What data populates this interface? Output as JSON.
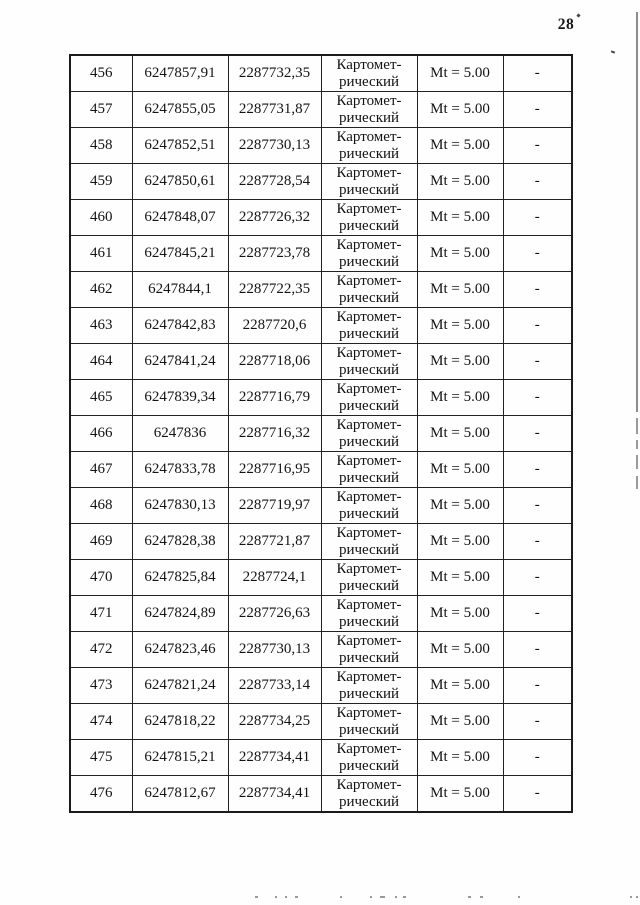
{
  "page": {
    "number": "28"
  },
  "table": {
    "method_line1": "Картомет-",
    "method_line2": "рический",
    "accuracy": "Mt = 5.00",
    "note": "-",
    "rows": [
      {
        "n": "456",
        "x": "6247857,91",
        "y": "2287732,35"
      },
      {
        "n": "457",
        "x": "6247855,05",
        "y": "2287731,87"
      },
      {
        "n": "458",
        "x": "6247852,51",
        "y": "2287730,13"
      },
      {
        "n": "459",
        "x": "6247850,61",
        "y": "2287728,54"
      },
      {
        "n": "460",
        "x": "6247848,07",
        "y": "2287726,32"
      },
      {
        "n": "461",
        "x": "6247845,21",
        "y": "2287723,78"
      },
      {
        "n": "462",
        "x": "6247844,1",
        "y": "2287722,35"
      },
      {
        "n": "463",
        "x": "6247842,83",
        "y": "2287720,6"
      },
      {
        "n": "464",
        "x": "6247841,24",
        "y": "2287718,06"
      },
      {
        "n": "465",
        "x": "6247839,34",
        "y": "2287716,79"
      },
      {
        "n": "466",
        "x": "6247836",
        "y": "2287716,32"
      },
      {
        "n": "467",
        "x": "6247833,78",
        "y": "2287716,95"
      },
      {
        "n": "468",
        "x": "6247830,13",
        "y": "2287719,97"
      },
      {
        "n": "469",
        "x": "6247828,38",
        "y": "2287721,87"
      },
      {
        "n": "470",
        "x": "6247825,84",
        "y": "2287724,1"
      },
      {
        "n": "471",
        "x": "6247824,89",
        "y": "2287726,63"
      },
      {
        "n": "472",
        "x": "6247823,46",
        "y": "2287730,13"
      },
      {
        "n": "473",
        "x": "6247821,24",
        "y": "2287733,14"
      },
      {
        "n": "474",
        "x": "6247818,22",
        "y": "2287734,25"
      },
      {
        "n": "475",
        "x": "6247815,21",
        "y": "2287734,41"
      },
      {
        "n": "476",
        "x": "6247812,67",
        "y": "2287734,41"
      }
    ]
  }
}
